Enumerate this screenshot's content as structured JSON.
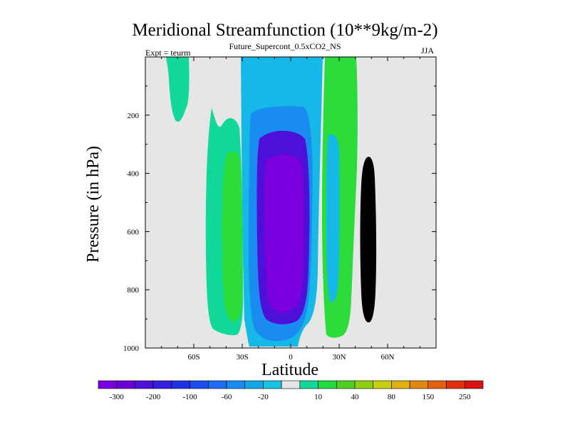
{
  "chart_data": {
    "type": "heatmap",
    "title": "Meridional Streamfunction (10**9kg/m-2)",
    "subtitle": "Future_Supercont_0.5xCO2_NS",
    "left_note": "Expt = teurm",
    "right_note": "JJA",
    "xlabel": "Latitude",
    "ylabel": "Pressure (in hPa)",
    "xlim": [
      -90,
      90
    ],
    "ylim": [
      1000,
      0
    ],
    "y_inverted": true,
    "x_ticks": [
      -60,
      -30,
      0,
      30,
      60
    ],
    "x_tick_labels": [
      "60S",
      "30S",
      "0",
      "30N",
      "60N"
    ],
    "y_ticks": [
      200,
      400,
      600,
      800,
      1000
    ],
    "y_tick_labels": [
      "200",
      "400",
      "600",
      "800",
      "1000"
    ],
    "colorbar": {
      "colors": [
        "#7b00e0",
        "#6a00d8",
        "#4d10d8",
        "#3520e0",
        "#2030e6",
        "#1a4ef0",
        "#1e6cf0",
        "#1a8cf0",
        "#15a8e8",
        "#1ac4e0",
        "#e6e6e6",
        "#12d89a",
        "#20dc40",
        "#50d020",
        "#90d010",
        "#c8d010",
        "#e0b010",
        "#e08810",
        "#e06010",
        "#e03010",
        "#d81010"
      ],
      "labels": [
        "-300",
        "-200",
        "-100",
        "-60",
        "-20",
        "10",
        "40",
        "80",
        "150",
        "250"
      ]
    },
    "regions": [
      {
        "name": "negative cell outer",
        "value": -20,
        "color": "#15b8e6"
      },
      {
        "name": "negative cell",
        "value": -60,
        "color": "#1a8cf0"
      },
      {
        "name": "negative cell core",
        "value": -200,
        "color": "#4d10d8"
      },
      {
        "name": "negative cell minimum",
        "value": -300,
        "color": "#7b00e0"
      },
      {
        "name": "southern positive cell",
        "value": 10,
        "color": "#12d89a"
      },
      {
        "name": "southern positive core",
        "value": 40,
        "color": "#2bdc3a"
      },
      {
        "name": "northern positive cell",
        "value": 10,
        "color": "#12d89a"
      },
      {
        "name": "northern positive core",
        "value": 40,
        "color": "#2bdc3a"
      },
      {
        "name": "northern negative cell",
        "value": -20,
        "color": "#15b8e6"
      }
    ]
  }
}
